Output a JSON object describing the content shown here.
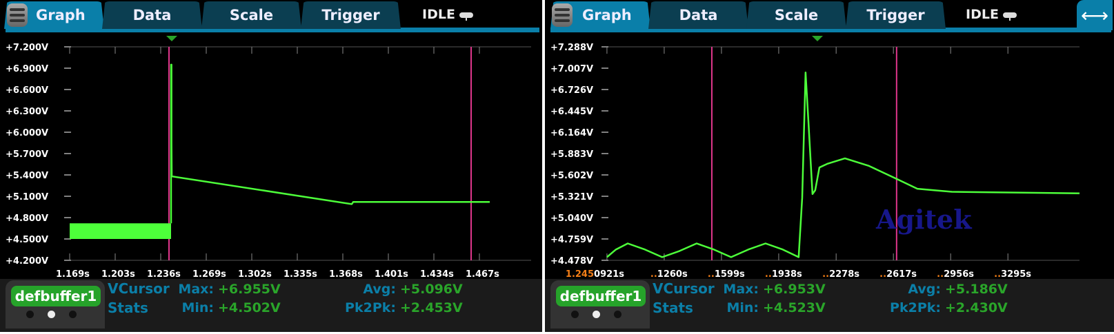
{
  "colors": {
    "tab_active": "#0a7fa9",
    "tab": "#0b3e51",
    "trace": "#4dff3a",
    "cursor": "#e0368c",
    "trigger": "#2aa52a",
    "stat_label": "#0b7fa8",
    "stat_value": "#2aa52a",
    "buffer": "#26a32a"
  },
  "panels": [
    {
      "tabs": [
        "Graph",
        "Data",
        "Scale",
        "Trigger"
      ],
      "status": "IDLE",
      "menu_icon": "hamburger-icon",
      "status_icon": "pill-icon",
      "y_ticks": [
        "+7.200V",
        "+6.900V",
        "+6.600V",
        "+6.300V",
        "+6.000V",
        "+5.700V",
        "+5.400V",
        "+5.100V",
        "+4.800V",
        "+4.500V",
        "+4.200V"
      ],
      "x_ticks": [
        {
          "p": "",
          "t": "1.169s"
        },
        {
          "p": "",
          "t": "1.203s"
        },
        {
          "p": "",
          "t": "1.236s"
        },
        {
          "p": "",
          "t": "1.269s"
        },
        {
          "p": "",
          "t": "1.302s"
        },
        {
          "p": "",
          "t": "1.335s"
        },
        {
          "p": "",
          "t": "1.368s"
        },
        {
          "p": "",
          "t": "1.401s"
        },
        {
          "p": "",
          "t": "1.434s"
        },
        {
          "p": "",
          "t": "1.467s"
        }
      ],
      "buffer": "defbuffer1",
      "stats_title": [
        "VCursor",
        "Stats"
      ],
      "stats": {
        "max_label": "Max:",
        "max": "+6.955V",
        "min_label": "Min:",
        "min": "+4.502V",
        "avg_label": "Avg:",
        "avg": "+5.096V",
        "pk_label": "Pk2Pk:",
        "pk": "+2.453V"
      }
    },
    {
      "tabs": [
        "Graph",
        "Data",
        "Scale",
        "Trigger"
      ],
      "status": "IDLE",
      "menu_icon": "hamburger-icon",
      "status_icon": "pill-icon",
      "extra_icon": "pan-arrows-icon",
      "y_ticks": [
        "+7.288V",
        "+7.007V",
        "+6.726V",
        "+6.445V",
        "+6.164V",
        "+5.883V",
        "+5.602V",
        "+5.321V",
        "+5.040V",
        "+4.759V",
        "+4.478V"
      ],
      "x_ticks": [
        {
          "p": "1.245",
          "t": "0921s"
        },
        {
          "p": "..",
          "t": "1260s"
        },
        {
          "p": "..",
          "t": "1599s"
        },
        {
          "p": "..",
          "t": "1938s"
        },
        {
          "p": "..",
          "t": "2278s"
        },
        {
          "p": "..",
          "t": "2617s"
        },
        {
          "p": "..",
          "t": "2956s"
        },
        {
          "p": "..",
          "t": "3295s"
        }
      ],
      "buffer": "defbuffer1",
      "stats_title": [
        "VCursor",
        "Stats"
      ],
      "stats": {
        "max_label": "Max:",
        "max": "+6.953V",
        "min_label": "Min:",
        "min": "+4.523V",
        "avg_label": "Avg:",
        "avg": "+5.186V",
        "pk_label": "Pk2Pk:",
        "pk": "+2.430V"
      },
      "watermark": "Agitek"
    }
  ],
  "chart_data": [
    {
      "type": "line",
      "xlim": [
        1.167,
        1.5035
      ],
      "ylim": [
        4.2,
        7.2
      ],
      "x_tick_values": [
        1.169,
        1.202,
        1.235,
        1.268,
        1.301,
        1.334,
        1.367,
        1.4,
        1.433,
        1.466
      ],
      "grid": false,
      "cursors": [
        1.241,
        1.46
      ],
      "noise_band": {
        "x": [
          1.169,
          1.2425
        ],
        "y": [
          4.5,
          4.72
        ]
      },
      "points": [
        [
          1.2425,
          4.72
        ],
        [
          1.2425,
          6.95
        ],
        [
          1.2428,
          6.95
        ],
        [
          1.2428,
          5.85
        ],
        [
          1.243,
          5.38
        ],
        [
          1.3735,
          4.99
        ],
        [
          1.3745,
          5.02
        ],
        [
          1.4735,
          5.02
        ]
      ]
    },
    {
      "type": "line",
      "xlim": [
        1.2450905,
        1.2453719
      ],
      "ylim": [
        4.478,
        7.288
      ],
      "x_tick_values": [
        1.2450921,
        1.245126,
        1.2451599,
        1.2451938,
        1.2452278,
        1.2452617,
        1.2452956,
        1.2453295
      ],
      "grid": false,
      "cursors": [
        1.2451542,
        1.2452636
      ],
      "points": [
        [
          1.2450921,
          4.52
        ],
        [
          1.2450974,
          4.62
        ],
        [
          1.2451044,
          4.7
        ],
        [
          1.2451146,
          4.62
        ],
        [
          1.2451248,
          4.52
        ],
        [
          1.245135,
          4.6
        ],
        [
          1.2451452,
          4.7
        ],
        [
          1.2451554,
          4.62
        ],
        [
          1.2451656,
          4.52
        ],
        [
          1.2451758,
          4.62
        ],
        [
          1.245186,
          4.7
        ],
        [
          1.2451962,
          4.62
        ],
        [
          1.2452056,
          4.52
        ],
        [
          1.2452077,
          5.3
        ],
        [
          1.2452097,
          6.95
        ],
        [
          1.2452114,
          6.3
        ],
        [
          1.2452138,
          5.35
        ],
        [
          1.2452154,
          5.4
        ],
        [
          1.2452179,
          5.7
        ],
        [
          1.2452228,
          5.75
        ],
        [
          1.245233,
          5.82
        ],
        [
          1.2452473,
          5.72
        ],
        [
          1.2452636,
          5.55
        ],
        [
          1.2452759,
          5.42
        ],
        [
          1.2452963,
          5.38
        ],
        [
          1.2453719,
          5.36
        ]
      ]
    }
  ]
}
